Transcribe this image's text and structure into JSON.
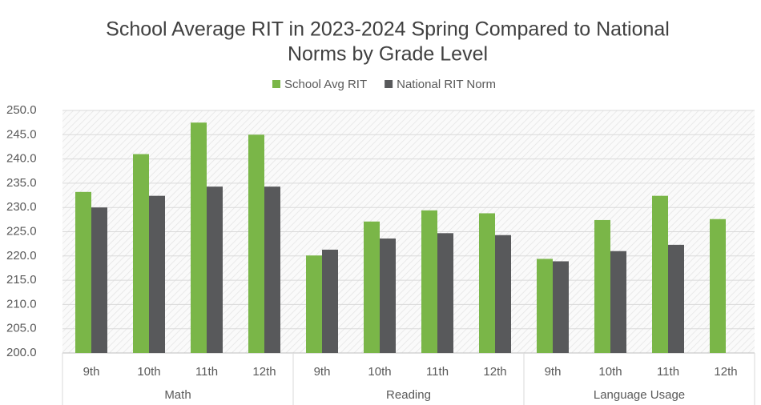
{
  "chart_data": {
    "type": "bar",
    "title": [
      "School Average RIT in 2023-2024 Spring Compared to National",
      "Norms by Grade Level"
    ],
    "groups": [
      {
        "label": "Math",
        "categories": [
          "9th",
          "10th",
          "11th",
          "12th"
        ]
      },
      {
        "label": "Reading",
        "categories": [
          "9th",
          "10th",
          "11th",
          "12th"
        ]
      },
      {
        "label": "Language Usage",
        "categories": [
          "9th",
          "10th",
          "11th",
          "12th"
        ]
      }
    ],
    "series": [
      {
        "name": "School Avg RIT",
        "color": "#7ab648",
        "values": [
          233.2,
          241.0,
          247.5,
          245.0,
          220.1,
          227.1,
          229.4,
          228.8,
          219.4,
          227.4,
          232.4,
          227.6
        ]
      },
      {
        "name": "National RIT Norm",
        "color": "#58595b",
        "values": [
          230.0,
          232.4,
          234.3,
          234.3,
          221.3,
          223.6,
          224.7,
          224.3,
          218.9,
          221.0,
          222.3,
          null
        ]
      }
    ],
    "ylim": [
      200,
      250
    ],
    "yticks": [
      {
        "value": 200,
        "label": "200.0"
      },
      {
        "value": 205,
        "label": "205.0"
      },
      {
        "value": 210,
        "label": "210.0"
      },
      {
        "value": 215,
        "label": "215.0"
      },
      {
        "value": 220,
        "label": "220.0"
      },
      {
        "value": 225,
        "label": "225.0"
      },
      {
        "value": 230,
        "label": "230.0"
      },
      {
        "value": 235,
        "label": "235.0"
      },
      {
        "value": 240,
        "label": "240.0"
      },
      {
        "value": 245,
        "label": "245.0"
      },
      {
        "value": 250,
        "label": "250.0"
      }
    ],
    "grid": true,
    "legend": "top"
  }
}
